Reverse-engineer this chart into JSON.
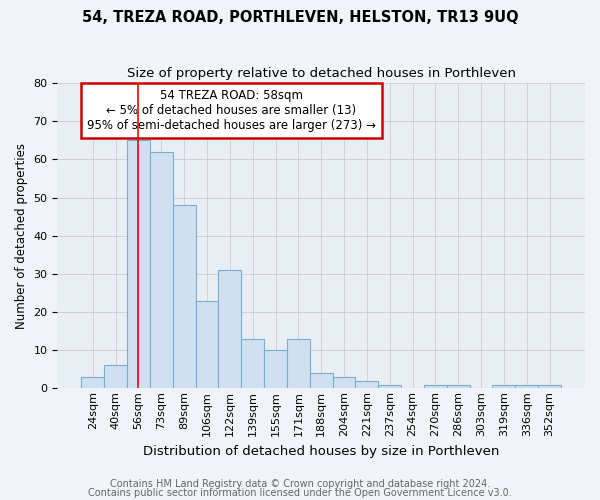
{
  "title": "54, TREZA ROAD, PORTHLEVEN, HELSTON, TR13 9UQ",
  "subtitle": "Size of property relative to detached houses in Porthleven",
  "xlabel": "Distribution of detached houses by size in Porthleven",
  "ylabel": "Number of detached properties",
  "categories": [
    "24sqm",
    "40sqm",
    "56sqm",
    "73sqm",
    "89sqm",
    "106sqm",
    "122sqm",
    "139sqm",
    "155sqm",
    "171sqm",
    "188sqm",
    "204sqm",
    "221sqm",
    "237sqm",
    "254sqm",
    "270sqm",
    "286sqm",
    "303sqm",
    "319sqm",
    "336sqm",
    "352sqm"
  ],
  "values": [
    3,
    6,
    65,
    62,
    48,
    23,
    31,
    13,
    10,
    13,
    4,
    3,
    2,
    1,
    0,
    1,
    1,
    0,
    1,
    1,
    1
  ],
  "bar_color": "#cfe0f0",
  "bar_edge_color": "#7aacce",
  "red_line_x": 2.0,
  "annotation_title": "54 TREZA ROAD: 58sqm",
  "annotation_line1": "← 5% of detached houses are smaller (13)",
  "annotation_line2": "95% of semi-detached houses are larger (273) →",
  "annotation_box_facecolor": "#ffffff",
  "annotation_box_edgecolor": "#cc0000",
  "ylim": [
    0,
    80
  ],
  "yticks": [
    0,
    10,
    20,
    30,
    40,
    50,
    60,
    70,
    80
  ],
  "grid_color": "#cccccc",
  "background_color": "#f0f4f8",
  "plot_bg_color": "#e8eef4",
  "footer1": "Contains HM Land Registry data © Crown copyright and database right 2024.",
  "footer2": "Contains public sector information licensed under the Open Government Licence v3.0.",
  "title_fontsize": 10.5,
  "subtitle_fontsize": 9.5,
  "xlabel_fontsize": 9.5,
  "ylabel_fontsize": 8.5,
  "tick_fontsize": 8,
  "annotation_fontsize": 8.5,
  "footer_fontsize": 7
}
